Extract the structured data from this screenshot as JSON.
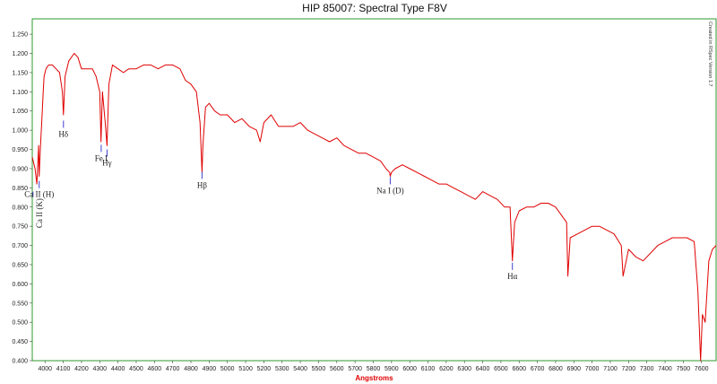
{
  "chart_data": {
    "type": "line",
    "title": "HIP 85007: Spectral Type F8V",
    "xlabel": "Angstroms",
    "ylabel": "",
    "side_note": "Created in RSpec Version 1.7",
    "xlim": [
      3930,
      7680
    ],
    "ylim": [
      0.4,
      1.29
    ],
    "x_ticks": [
      "4000",
      "4100",
      "4200",
      "4300",
      "4400",
      "4500",
      "4600",
      "4700",
      "4800",
      "4900",
      "5000",
      "5100",
      "5200",
      "5300",
      "5400",
      "5500",
      "5600",
      "5700",
      "5800",
      "5900",
      "6000",
      "6100",
      "6200",
      "6300",
      "6400",
      "6500",
      "6600",
      "6700",
      "6800",
      "6900",
      "7000",
      "7100",
      "7200",
      "7300",
      "7400",
      "7500",
      "7600"
    ],
    "y_ticks": [
      "0.400",
      "0.450",
      "0.500",
      "0.550",
      "0.600",
      "0.650",
      "0.700",
      "0.750",
      "0.800",
      "0.850",
      "0.900",
      "0.950",
      "1.000",
      "1.050",
      "1.100",
      "1.150",
      "1.200",
      "1.250"
    ],
    "grid": false,
    "colors": {
      "line": "#e00000",
      "frame": "#2e9a2e",
      "marker": "#4040d0",
      "xlabel": "#e00000"
    },
    "series": [
      {
        "x": [
          3930,
          3945,
          3955,
          3965,
          3968,
          3975,
          3985,
          3990,
          3995,
          4005,
          4020,
          4040,
          4060,
          4080,
          4095,
          4101,
          4110,
          4130,
          4160,
          4180,
          4200,
          4230,
          4260,
          4280,
          4300,
          4307,
          4315,
          4330,
          4340,
          4350,
          4370,
          4400,
          4430,
          4460,
          4500,
          4540,
          4580,
          4620,
          4660,
          4700,
          4740,
          4770,
          4800,
          4830,
          4850,
          4856,
          4861,
          4866,
          4880,
          4900,
          4930,
          4960,
          5000,
          5040,
          5080,
          5120,
          5160,
          5180,
          5200,
          5240,
          5280,
          5320,
          5360,
          5400,
          5440,
          5480,
          5520,
          5560,
          5600,
          5640,
          5680,
          5720,
          5760,
          5800,
          5840,
          5870,
          5890,
          5893,
          5900,
          5920,
          5960,
          6000,
          6040,
          6080,
          6120,
          6160,
          6200,
          6240,
          6280,
          6320,
          6360,
          6400,
          6440,
          6480,
          6520,
          6550,
          6563,
          6575,
          6600,
          6640,
          6680,
          6720,
          6760,
          6800,
          6830,
          6860,
          6867,
          6880,
          6920,
          6960,
          7000,
          7040,
          7080,
          7120,
          7160,
          7170,
          7200,
          7240,
          7280,
          7320,
          7360,
          7400,
          7440,
          7480,
          7520,
          7560,
          7580,
          7595,
          7605,
          7620,
          7640,
          7660,
          7680
        ],
        "y": [
          0.93,
          0.9,
          0.86,
          0.96,
          0.88,
          0.96,
          1.05,
          1.1,
          1.14,
          1.16,
          1.17,
          1.17,
          1.16,
          1.15,
          1.1,
          1.04,
          1.14,
          1.18,
          1.2,
          1.19,
          1.16,
          1.16,
          1.16,
          1.14,
          1.1,
          0.97,
          1.1,
          1.02,
          0.96,
          1.12,
          1.17,
          1.16,
          1.15,
          1.16,
          1.16,
          1.17,
          1.17,
          1.16,
          1.17,
          1.17,
          1.16,
          1.13,
          1.12,
          1.1,
          1.02,
          0.95,
          0.89,
          0.96,
          1.06,
          1.07,
          1.05,
          1.04,
          1.04,
          1.02,
          1.03,
          1.01,
          1.0,
          0.97,
          1.02,
          1.04,
          1.01,
          1.01,
          1.01,
          1.02,
          1.0,
          0.99,
          0.98,
          0.97,
          0.98,
          0.96,
          0.95,
          0.94,
          0.94,
          0.93,
          0.92,
          0.9,
          0.89,
          0.88,
          0.89,
          0.9,
          0.91,
          0.9,
          0.89,
          0.88,
          0.87,
          0.86,
          0.86,
          0.85,
          0.84,
          0.83,
          0.82,
          0.84,
          0.83,
          0.82,
          0.8,
          0.8,
          0.66,
          0.76,
          0.79,
          0.8,
          0.8,
          0.81,
          0.81,
          0.8,
          0.78,
          0.76,
          0.62,
          0.72,
          0.73,
          0.74,
          0.75,
          0.75,
          0.74,
          0.73,
          0.7,
          0.62,
          0.69,
          0.67,
          0.66,
          0.68,
          0.7,
          0.71,
          0.72,
          0.72,
          0.72,
          0.71,
          0.58,
          0.4,
          0.52,
          0.5,
          0.66,
          0.69,
          0.7
        ]
      }
    ],
    "annotations": [
      {
        "text": "Ca II (K)",
        "x": 3934,
        "y": 0.84,
        "vertical": true
      },
      {
        "text": "Ca II (H)",
        "x": 3968,
        "y": 0.868
      },
      {
        "text": "Hδ",
        "x": 4101,
        "y": 1.025
      },
      {
        "text": "Fe I",
        "x": 4308,
        "y": 0.962
      },
      {
        "text": "Hγ",
        "x": 4340,
        "y": 0.95
      },
      {
        "text": "Hβ",
        "x": 4861,
        "y": 0.892
      },
      {
        "text": "Na I (D)",
        "x": 5893,
        "y": 0.878
      },
      {
        "text": "Hα",
        "x": 6563,
        "y": 0.655
      }
    ]
  }
}
